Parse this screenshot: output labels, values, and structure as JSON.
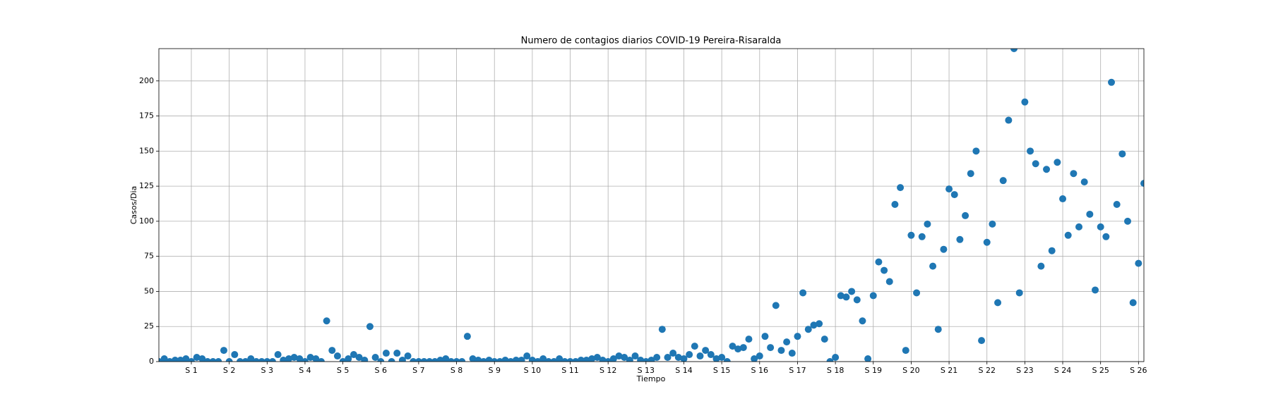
{
  "chart_data": {
    "type": "scatter",
    "title": "Numero de contagios diarios COVID-19 Pereira-Risaralda",
    "x_label": "Tiempo",
    "y_label": "Casos/Dia",
    "color": "#1f77b4",
    "grid": true,
    "xlim": [
      1,
      183
    ],
    "ylim": [
      0,
      223
    ],
    "xticks": [
      {
        "value": 7,
        "label": "S 1"
      },
      {
        "value": 14,
        "label": "S 2"
      },
      {
        "value": 21,
        "label": "S 3"
      },
      {
        "value": 28,
        "label": "S 4"
      },
      {
        "value": 35,
        "label": "S 5"
      },
      {
        "value": 42,
        "label": "S 6"
      },
      {
        "value": 49,
        "label": "S 7"
      },
      {
        "value": 56,
        "label": "S 8"
      },
      {
        "value": 63,
        "label": "S 9"
      },
      {
        "value": 70,
        "label": "S 10"
      },
      {
        "value": 77,
        "label": "S 11"
      },
      {
        "value": 84,
        "label": "S 12"
      },
      {
        "value": 91,
        "label": "S 13"
      },
      {
        "value": 98,
        "label": "S 14"
      },
      {
        "value": 105,
        "label": "S 15"
      },
      {
        "value": 112,
        "label": "S 16"
      },
      {
        "value": 119,
        "label": "S 17"
      },
      {
        "value": 126,
        "label": "S 18"
      },
      {
        "value": 133,
        "label": "S 19"
      },
      {
        "value": 140,
        "label": "S 20"
      },
      {
        "value": 147,
        "label": "S 21"
      },
      {
        "value": 154,
        "label": "S 22"
      },
      {
        "value": 161,
        "label": "S 23"
      },
      {
        "value": 168,
        "label": "S 24"
      },
      {
        "value": 175,
        "label": "S 25"
      },
      {
        "value": 182,
        "label": "S 26"
      }
    ],
    "yticks": [
      0,
      25,
      50,
      75,
      100,
      125,
      150,
      175,
      200
    ],
    "x": [
      1,
      2,
      3,
      4,
      5,
      6,
      7,
      8,
      9,
      10,
      11,
      12,
      13,
      14,
      15,
      16,
      17,
      18,
      19,
      20,
      21,
      22,
      23,
      24,
      25,
      26,
      27,
      28,
      29,
      30,
      31,
      32,
      33,
      34,
      35,
      36,
      37,
      38,
      39,
      40,
      41,
      42,
      43,
      44,
      45,
      46,
      47,
      48,
      49,
      50,
      51,
      52,
      53,
      54,
      55,
      56,
      57,
      58,
      59,
      60,
      61,
      62,
      63,
      64,
      65,
      66,
      67,
      68,
      69,
      70,
      71,
      72,
      73,
      74,
      75,
      76,
      77,
      78,
      79,
      80,
      81,
      82,
      83,
      84,
      85,
      86,
      87,
      88,
      89,
      90,
      91,
      92,
      93,
      94,
      95,
      96,
      97,
      98,
      99,
      100,
      101,
      102,
      103,
      104,
      105,
      106,
      107,
      108,
      109,
      110,
      111,
      112,
      113,
      114,
      115,
      116,
      117,
      118,
      119,
      120,
      121,
      122,
      123,
      124,
      125,
      126,
      127,
      128,
      129,
      130,
      131,
      132,
      133,
      134,
      135,
      136,
      137,
      138,
      139,
      140,
      141,
      142,
      143,
      144,
      145,
      146,
      147,
      148,
      149,
      150,
      151,
      152,
      153,
      154,
      155,
      156,
      157,
      158,
      159,
      160,
      161,
      162,
      163,
      164,
      165,
      166,
      167,
      168,
      169,
      170,
      171,
      172,
      173,
      174,
      175,
      176,
      177,
      178,
      179,
      180,
      181,
      182,
      183
    ],
    "values": [
      0,
      2,
      0,
      1,
      1,
      2,
      0,
      3,
      2,
      0,
      0,
      0,
      8,
      0,
      5,
      0,
      0,
      2,
      0,
      0,
      0,
      0,
      5,
      1,
      2,
      3,
      2,
      0,
      3,
      2,
      0,
      29,
      8,
      4,
      0,
      2,
      5,
      3,
      1,
      25,
      3,
      0,
      6,
      0,
      6,
      1,
      4,
      0,
      0,
      0,
      0,
      0,
      1,
      2,
      0,
      0,
      0,
      18,
      2,
      1,
      0,
      1,
      0,
      0,
      1,
      0,
      1,
      1,
      4,
      1,
      0,
      2,
      0,
      0,
      2,
      0,
      0,
      0,
      1,
      1,
      2,
      3,
      1,
      0,
      2,
      4,
      3,
      1,
      4,
      1,
      0,
      1,
      3,
      23,
      3,
      6,
      3,
      2,
      5,
      11,
      4,
      8,
      5,
      2,
      3,
      0,
      11,
      9,
      10,
      16,
      2,
      4,
      18,
      10,
      40,
      8,
      14,
      6,
      18,
      49,
      23,
      26,
      27,
      16,
      0,
      3,
      47,
      46,
      50,
      44,
      29,
      2,
      47,
      71,
      65,
      57,
      112,
      124,
      8,
      90,
      49,
      89,
      98,
      68,
      23,
      80,
      123,
      119,
      87,
      104,
      134,
      150,
      15,
      85,
      98,
      42,
      129,
      172,
      223,
      49,
      185,
      150,
      141,
      68,
      137,
      79,
      142,
      116,
      90,
      134,
      96,
      128,
      105,
      51,
      96,
      89,
      199,
      112,
      148,
      100,
      42,
      70,
      127
    ]
  }
}
